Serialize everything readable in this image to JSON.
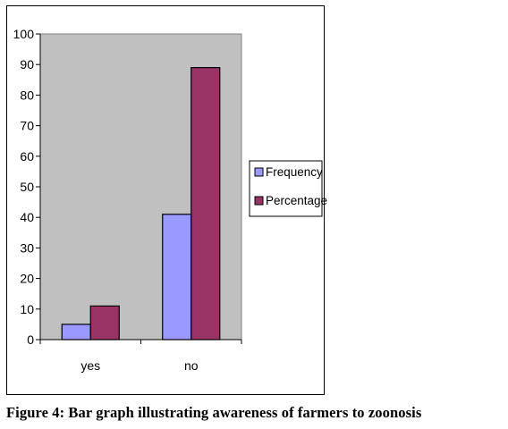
{
  "chart_data": {
    "type": "bar",
    "categories": [
      "yes",
      "no"
    ],
    "series": [
      {
        "name": "Frequency",
        "values": [
          5,
          41
        ],
        "color": "#9999ff"
      },
      {
        "name": "Percentage",
        "values": [
          11,
          89
        ],
        "color": "#993366"
      }
    ],
    "ylim": [
      0,
      100
    ],
    "yticks": [
      0,
      10,
      20,
      30,
      40,
      50,
      60,
      70,
      80,
      90,
      100
    ],
    "plot_background": "#c0c0c0",
    "legend_position": "right",
    "grid": false
  },
  "caption": "Figure 4: Bar graph illustrating awareness of farmers to zoonosis"
}
